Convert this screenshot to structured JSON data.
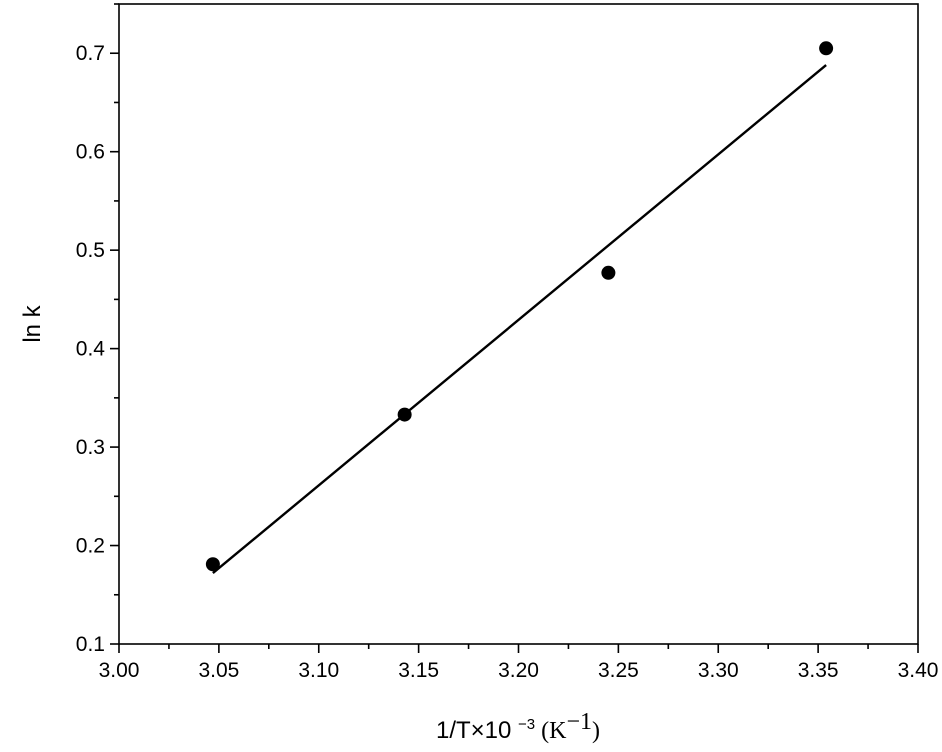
{
  "chart_data": {
    "type": "scatter",
    "xlabel": "1/T×10 ⁻³ (K⁻¹)",
    "xlabel_parts": {
      "main": "1/T×10 ",
      "exp": "−3",
      "unit": " (K",
      "unit_exp": "−1",
      "close": ")"
    },
    "ylabel": "ln k",
    "xlim": [
      3.0,
      3.4
    ],
    "ylim": [
      0.1,
      0.75
    ],
    "x_ticks": [
      "3.00",
      "3.05",
      "3.10",
      "3.15",
      "3.20",
      "3.25",
      "3.30",
      "3.35",
      "3.40"
    ],
    "y_ticks": [
      "0.1",
      "0.2",
      "0.3",
      "0.4",
      "0.5",
      "0.6",
      "0.7"
    ],
    "grid": false,
    "points": [
      {
        "x": 3.047,
        "y": 0.181
      },
      {
        "x": 3.143,
        "y": 0.333
      },
      {
        "x": 3.245,
        "y": 0.477
      },
      {
        "x": 3.354,
        "y": 0.705
      }
    ],
    "fit_line": {
      "x": [
        3.047,
        3.354
      ],
      "y": [
        0.172,
        0.688
      ]
    },
    "colors": {
      "marker": "#000000",
      "line": "#000000",
      "axis": "#000000"
    }
  }
}
